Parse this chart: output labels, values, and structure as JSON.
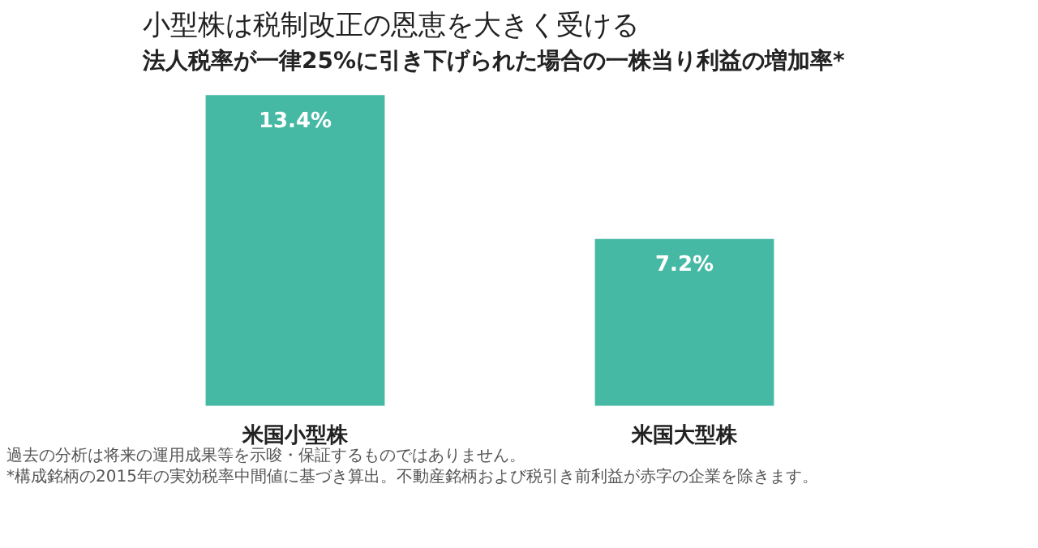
{
  "chart_data": {
    "type": "bar",
    "title": "小型株は税制改正の恩恵を大きく受ける",
    "subtitle": "法人税率が一律25%に引き下げられた場合の一株当り利益の増加率*",
    "categories": [
      "米国小型株",
      "米国大型株"
    ],
    "values": [
      13.4,
      7.2
    ],
    "color": "#46b9a4",
    "value_labels": [
      "13.4%",
      "7.2%"
    ],
    "annotations": [
      "過去の分析は将来の運用成果等を示唆・保証するものではありません。",
      "*構成銘柄の2015年の実効税率中間値に基づき算出。不動産銘柄および税引き前利益が赤字の企業を除きます。"
    ]
  }
}
